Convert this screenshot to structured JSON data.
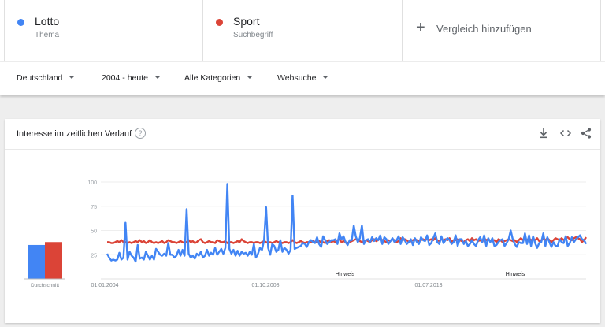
{
  "terms": [
    {
      "name": "Lotto",
      "type": "Thema",
      "color": "#4285f4"
    },
    {
      "name": "Sport",
      "type": "Suchbegriff",
      "color": "#db4437"
    }
  ],
  "add_compare": {
    "icon": "plus-icon",
    "label": "Vergleich hinzufügen"
  },
  "filters": {
    "region": "Deutschland",
    "time": "2004 - heute",
    "category": "Alle Kategorien",
    "search_type": "Websuche"
  },
  "card": {
    "title": "Interesse im zeitlichen Verlauf",
    "help_icon": "?",
    "tools": [
      "download-icon",
      "embed-code-icon",
      "share-icon"
    ]
  },
  "chart_data": {
    "type": "line",
    "title": "Interesse im zeitlichen Verlauf",
    "ylim": [
      0,
      100
    ],
    "y_ticks": [
      "100",
      "75",
      "50",
      "25"
    ],
    "x_tick_labels": [
      "01.01.2004",
      "01.10.2008",
      "01.07.2013"
    ],
    "annotations": [
      "Hinweis",
      "Hinweis"
    ],
    "average_label": "Durchschnitt",
    "averages": [
      {
        "name": "Lotto",
        "value": 35
      },
      {
        "name": "Sport",
        "value": 38
      }
    ],
    "grid": true,
    "series": [
      {
        "name": "Lotto",
        "color": "#4285f4",
        "values": [
          26,
          22,
          19,
          20,
          19,
          20,
          27,
          20,
          22,
          58,
          20,
          28,
          24,
          22,
          18,
          35,
          21,
          22,
          20,
          28,
          24,
          20,
          24,
          20,
          31,
          28,
          25,
          24,
          26,
          24,
          37,
          25,
          25,
          22,
          24,
          30,
          24,
          30,
          24,
          72,
          26,
          22,
          24,
          21,
          26,
          24,
          28,
          22,
          24,
          30,
          24,
          27,
          25,
          32,
          25,
          28,
          31,
          26,
          32,
          98,
          31,
          26,
          30,
          24,
          29,
          24,
          28,
          26,
          27,
          24,
          28,
          25,
          36,
          22,
          26,
          32,
          30,
          40,
          74,
          32,
          25,
          36,
          34,
          28,
          30,
          40,
          28,
          32,
          30,
          26,
          30,
          86,
          31,
          32,
          33,
          34,
          37,
          36,
          33,
          38,
          40,
          38,
          37,
          43,
          36,
          33,
          44,
          40,
          36,
          38,
          40,
          40,
          41,
          36,
          47,
          41,
          44,
          38,
          35,
          40,
          40,
          55,
          44,
          38,
          42,
          55,
          36,
          40,
          41,
          38,
          43,
          39,
          42,
          40,
          45,
          36,
          43,
          41,
          36,
          39,
          42,
          38,
          40,
          44,
          36,
          43,
          40,
          36,
          38,
          41,
          35,
          42,
          38,
          36,
          43,
          40,
          39,
          45,
          35,
          37,
          42,
          47,
          38,
          36,
          44,
          37,
          40,
          42,
          40,
          36,
          38,
          45,
          34,
          41,
          41,
          36,
          39,
          34,
          36,
          40,
          36,
          34,
          40,
          43,
          38,
          45,
          34,
          42,
          38,
          42,
          34,
          35,
          38,
          40,
          41,
          34,
          37,
          41,
          50,
          41,
          36,
          33,
          38,
          37,
          37,
          47,
          36,
          45,
          34,
          44,
          37,
          32,
          37,
          38,
          47,
          34,
          43,
          38,
          33,
          38,
          34,
          34,
          41,
          38,
          37,
          44,
          34,
          37,
          43,
          38,
          41,
          43,
          45,
          41,
          40,
          36
        ]
      },
      {
        "name": "Sport",
        "color": "#db4437",
        "values": [
          38,
          38,
          37,
          37,
          38,
          39,
          38,
          40,
          38,
          38,
          37,
          38,
          37,
          38,
          39,
          38,
          40,
          38,
          39,
          37,
          38,
          40,
          38,
          37,
          38,
          37,
          38,
          39,
          37,
          38,
          40,
          39,
          38,
          38,
          37,
          38,
          39,
          38,
          37,
          38,
          40,
          38,
          39,
          37,
          38,
          40,
          41,
          38,
          37,
          38,
          39,
          38,
          38,
          37,
          40,
          39,
          38,
          38,
          39,
          37,
          38,
          38,
          37,
          38,
          39,
          38,
          41,
          39,
          38,
          37,
          38,
          38,
          37,
          38,
          38,
          37,
          38,
          39,
          38,
          37,
          38,
          37,
          38,
          39,
          38,
          38,
          37,
          38,
          38,
          37,
          38,
          40,
          38,
          37,
          38,
          39,
          38,
          37,
          38,
          38,
          38,
          39,
          38,
          38,
          39,
          38,
          38,
          37,
          39,
          40,
          38,
          39,
          38,
          40,
          41,
          38,
          39,
          38,
          37,
          38,
          39,
          40,
          41,
          40,
          39,
          38,
          39,
          40,
          39,
          38,
          40,
          41,
          39,
          40,
          42,
          40,
          39,
          38,
          40,
          39,
          41,
          40,
          38,
          39,
          42,
          40,
          41,
          40,
          38,
          39,
          40,
          41,
          40,
          39,
          40,
          41,
          40,
          41,
          40,
          41,
          40,
          42,
          40,
          39,
          41,
          40,
          41,
          40,
          42,
          38,
          40,
          40,
          41,
          40,
          39,
          38,
          40,
          41,
          39,
          42,
          40,
          41,
          39,
          40,
          38,
          42,
          40,
          41,
          39,
          40,
          40,
          38,
          41,
          40,
          38,
          39,
          40,
          41,
          40,
          39,
          40,
          38,
          40,
          42,
          40,
          41,
          40,
          42,
          40,
          41,
          40,
          42,
          39,
          40,
          41,
          40,
          42,
          40,
          38,
          40,
          42,
          41,
          40,
          42,
          40,
          42,
          43,
          41,
          40,
          42,
          43,
          42,
          41,
          38,
          40,
          43
        ]
      }
    ]
  }
}
